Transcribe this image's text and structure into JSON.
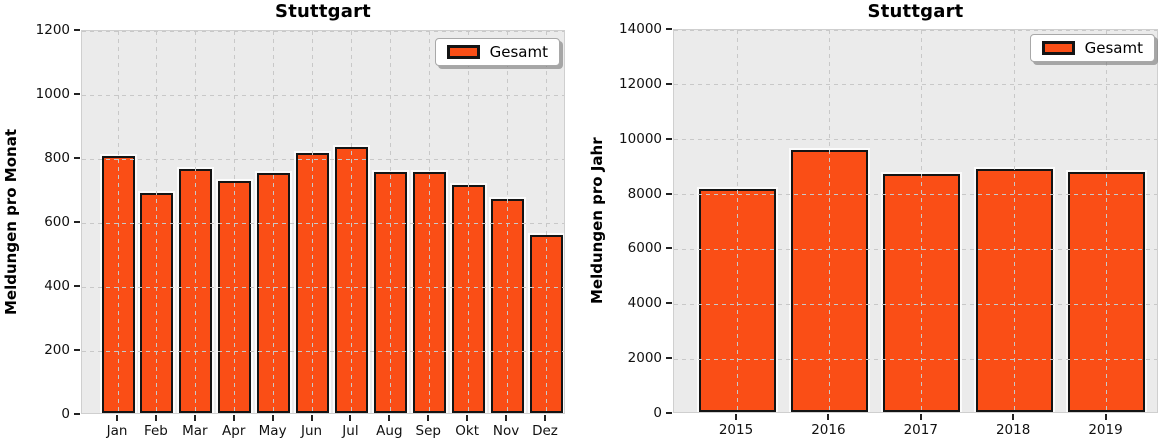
{
  "figure": {
    "background": "#FFFFFF",
    "description": "Two bar charts of reports (Meldungen) for Stuttgart: per month and per year"
  },
  "colors": {
    "bar_fill": "#FA4E16",
    "bar_edge": "#141414",
    "plot_background": "#EBEBEB",
    "gridline": "#C8C8C8",
    "text": "#000000",
    "legend_background": "#FFFFFF"
  },
  "chart_data": [
    {
      "type": "bar",
      "title": "Stuttgart",
      "xlabel": "",
      "ylabel": "Meldungen pro Monat",
      "categories": [
        "Jan",
        "Feb",
        "Mar",
        "Apr",
        "May",
        "Jun",
        "Jul",
        "Aug",
        "Sep",
        "Okt",
        "Nov",
        "Dez"
      ],
      "values": [
        804,
        689,
        764,
        726,
        751,
        813,
        831,
        753,
        754,
        711,
        669,
        557
      ],
      "ylim": [
        0,
        1200
      ],
      "yticks": [
        0,
        200,
        400,
        600,
        800,
        1000,
        1200
      ],
      "grid": true,
      "grid_style": "dashed",
      "legend": [
        "Gesamt"
      ],
      "legend_position": "upper right"
    },
    {
      "type": "bar",
      "title": "Stuttgart",
      "xlabel": "",
      "ylabel": "Meldungen pro Jahr",
      "categories": [
        "2015",
        "2016",
        "2017",
        "2018",
        "2019"
      ],
      "values": [
        8130,
        9550,
        8680,
        8860,
        8740
      ],
      "ylim": [
        0,
        14000
      ],
      "yticks": [
        0,
        2000,
        4000,
        6000,
        8000,
        10000,
        12000,
        14000
      ],
      "grid": true,
      "grid_style": "dashed",
      "legend": [
        "Gesamt"
      ],
      "legend_position": "upper right"
    }
  ]
}
